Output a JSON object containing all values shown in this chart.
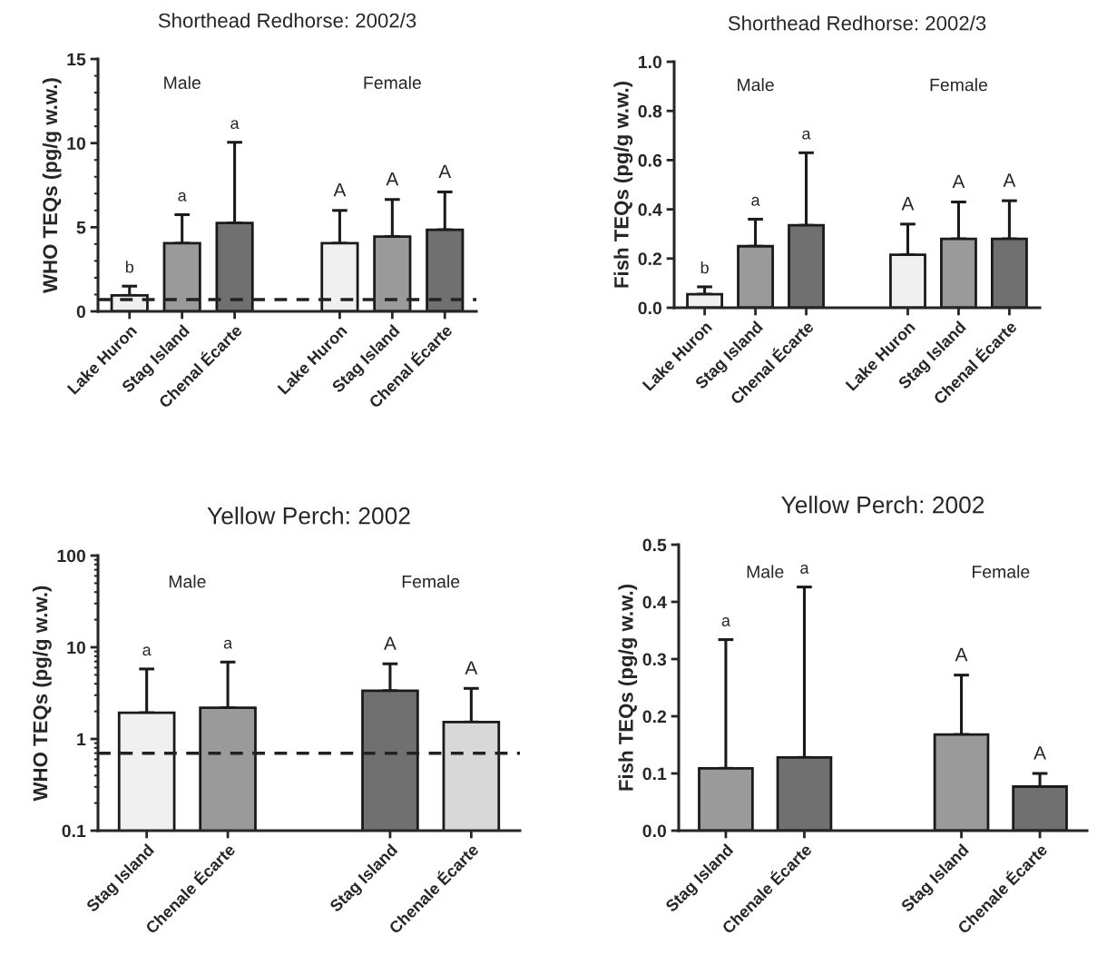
{
  "chart_data": [
    {
      "type": "bar",
      "title": "Shorthead Redhorse: 2002/3",
      "ylabel": "WHO TEQs (pg/g w.w.)",
      "categories": [
        "Lake Huron",
        "Stag Island",
        "Chenal Écarte",
        null,
        "Lake Huron",
        "Stag Island",
        "Chenal Écarte"
      ],
      "values": [
        0.95,
        4.05,
        5.25,
        null,
        4.05,
        4.45,
        4.85
      ],
      "errors": [
        [
          0.95,
          1.5
        ],
        [
          4.05,
          5.75
        ],
        [
          5.25,
          10.05
        ],
        null,
        [
          4.05,
          6.0
        ],
        [
          4.45,
          6.65
        ],
        [
          4.85,
          7.1
        ]
      ],
      "colors": [
        "#f0f0f0",
        "#9a9a9a",
        "#707070",
        "#ffffff",
        "#f0f0f0",
        "#9a9a9a",
        "#707070"
      ],
      "annotations": [
        "Male",
        "Female",
        "b",
        "a",
        "a",
        "A",
        "A",
        "A"
      ],
      "ylim": [
        0,
        15
      ],
      "yticks": [
        0,
        5,
        10,
        15
      ],
      "ref_lines": [
        {
          "axis": "y",
          "value": 0.7,
          "line_style": "dashed",
          "color": "#222222"
        }
      ],
      "grid": false,
      "legend": false
    },
    {
      "type": "bar",
      "title": "Shorthead Redhorse: 2002/3",
      "ylabel": "Fish TEQs (pg/g w.w.)",
      "categories": [
        "Lake Huron",
        "Stag Island",
        "Chenal Écarte",
        null,
        "Lake Huron",
        "Stag Island",
        "Chenal Écarte"
      ],
      "values": [
        0.055,
        0.25,
        0.335,
        null,
        0.215,
        0.28,
        0.28
      ],
      "errors": [
        [
          0.055,
          0.085
        ],
        [
          0.25,
          0.36
        ],
        [
          0.335,
          0.63
        ],
        null,
        [
          0.215,
          0.34
        ],
        [
          0.28,
          0.43
        ],
        [
          0.28,
          0.435
        ]
      ],
      "colors": [
        "#f0f0f0",
        "#9a9a9a",
        "#707070",
        "#ffffff",
        "#f0f0f0",
        "#9a9a9a",
        "#707070"
      ],
      "annotations": [
        "Male",
        "Female",
        "b",
        "a",
        "a",
        "A",
        "A",
        "A"
      ],
      "ylim": [
        0,
        1
      ],
      "yticks": [
        {
          "value": 0,
          "label": "0.0"
        },
        {
          "value": 0.2,
          "label": "0.2"
        },
        {
          "value": 0.4,
          "label": "0.4"
        },
        {
          "value": 0.6,
          "label": "0.6"
        },
        {
          "value": 0.8,
          "label": "0.8"
        },
        {
          "value": 1,
          "label": "1.0"
        }
      ],
      "grid": false,
      "legend": false
    },
    {
      "type": "bar",
      "title": "Yellow Perch: 2002",
      "ylabel": "WHO TEQs (pg/g w.w.)",
      "categories": [
        "Stag Island",
        "Chenale Écarte",
        null,
        "Stag Island",
        "Chenale Écarte"
      ],
      "values": [
        1.93,
        2.19,
        null,
        3.36,
        1.53
      ],
      "errors": [
        [
          1.93,
          5.8
        ],
        [
          2.19,
          6.9
        ],
        null,
        [
          3.36,
          6.6
        ],
        [
          1.53,
          3.56
        ]
      ],
      "colors": [
        "#f0f0f0",
        "#9a9a9a",
        "#ffffff",
        "#707070",
        "#d8d8d8"
      ],
      "annotations": [
        "Male",
        "Female",
        "a",
        "a",
        "A",
        "A"
      ],
      "log": "y",
      "ylim": [
        0.1,
        100
      ],
      "yticks": [
        0.1,
        1,
        10,
        100
      ],
      "ref_lines": [
        {
          "axis": "y",
          "value": 0.7,
          "line_style": "dashed",
          "color": "#222222"
        }
      ],
      "grid": false,
      "legend": false
    },
    {
      "type": "bar",
      "title": "Yellow Perch: 2002",
      "ylabel": "Fish TEQs (pg/g w.w.)",
      "categories": [
        "Stag Island",
        "Chenale Écarte",
        null,
        "Stag Island",
        "Chenale Écarte"
      ],
      "values": [
        0.109,
        0.128,
        null,
        0.168,
        0.077
      ],
      "errors": [
        [
          0.109,
          0.334
        ],
        [
          0.128,
          0.426
        ],
        null,
        [
          0.168,
          0.272
        ],
        [
          0.077,
          0.1
        ]
      ],
      "colors": [
        "#9a9a9a",
        "#707070",
        "#ffffff",
        "#9a9a9a",
        "#707070"
      ],
      "annotations": [
        "Male",
        "Female",
        "a",
        "a",
        "A",
        "A"
      ],
      "ylim": [
        0,
        0.5
      ],
      "yticks": [
        {
          "value": 0,
          "label": "0.0"
        },
        {
          "value": 0.1,
          "label": "0.1"
        },
        {
          "value": 0.2,
          "label": "0.2"
        },
        {
          "value": 0.3,
          "label": "0.3"
        },
        {
          "value": 0.4,
          "label": "0.4"
        },
        {
          "value": 0.5,
          "label": "0.5"
        }
      ],
      "grid": false,
      "legend": false
    }
  ]
}
